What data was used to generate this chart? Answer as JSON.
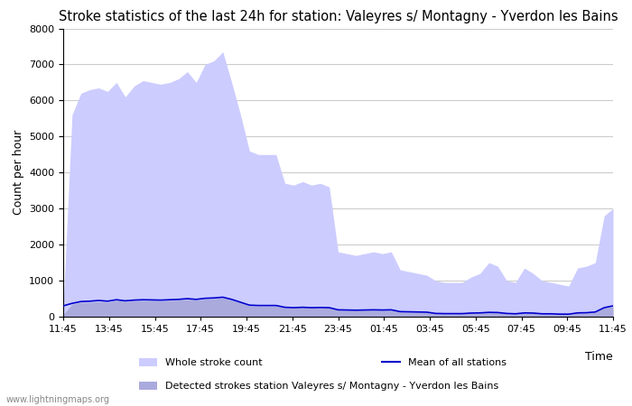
{
  "title": "Stroke statistics of the last 24h for station: Valeyres s/ Montagny - Yverdon les Bains",
  "xlabel": "Time",
  "ylabel": "Count per hour",
  "ylim": [
    0,
    8000
  ],
  "yticks": [
    0,
    1000,
    2000,
    3000,
    4000,
    5000,
    6000,
    7000,
    8000
  ],
  "xtick_labels": [
    "11:45",
    "13:45",
    "15:45",
    "17:45",
    "19:45",
    "21:45",
    "23:45",
    "01:45",
    "03:45",
    "05:45",
    "07:45",
    "09:45",
    "11:45"
  ],
  "watermark": "www.lightningmaps.org",
  "legend": {
    "whole_stroke_label": "Whole stroke count",
    "mean_label": "Mean of all stations",
    "detected_label": "Detected strokes station Valeyres s/ Montagny - Yverdon les Bains"
  },
  "whole_stroke_color": "#ccccff",
  "detected_stroke_color": "#aaaadd",
  "mean_line_color": "#0000cc",
  "background_color": "#ffffff",
  "grid_color": "#cccccc",
  "title_fontsize": 10.5,
  "axis_fontsize": 9,
  "tick_fontsize": 8,
  "whole_stroke_data": [
    300,
    5600,
    6200,
    6300,
    6350,
    6250,
    6500,
    6100,
    6400,
    6550,
    6500,
    6450,
    6500,
    6600,
    6800,
    6500,
    7000,
    7100,
    7350,
    6500,
    5600,
    4600,
    4500,
    4500,
    4500,
    3700,
    3650,
    3750,
    3650,
    3700,
    3600,
    1800,
    1750,
    1700,
    1750,
    1800,
    1750,
    1800,
    1300,
    1250,
    1200,
    1150,
    1000,
    950,
    950,
    950,
    1100,
    1200,
    1500,
    1400,
    1000,
    950,
    1350,
    1200,
    1000,
    950,
    900,
    850,
    1350,
    1400,
    1500,
    2800,
    3000
  ],
  "detected_stroke_data": [
    50,
    350,
    400,
    400,
    420,
    400,
    450,
    420,
    440,
    450,
    445,
    440,
    450,
    460,
    480,
    460,
    490,
    500,
    520,
    460,
    380,
    300,
    290,
    290,
    290,
    250,
    240,
    250,
    240,
    245,
    240,
    180,
    175,
    170,
    175,
    180,
    175,
    180,
    130,
    125,
    120,
    115,
    80,
    75,
    75,
    75,
    90,
    95,
    110,
    105,
    80,
    70,
    95,
    90,
    70,
    70,
    60,
    60,
    95,
    100,
    120,
    240,
    280
  ],
  "mean_line_data": [
    300,
    370,
    420,
    430,
    450,
    430,
    470,
    440,
    460,
    470,
    465,
    460,
    470,
    480,
    500,
    480,
    510,
    520,
    540,
    480,
    400,
    320,
    310,
    310,
    310,
    260,
    250,
    260,
    250,
    255,
    250,
    190,
    185,
    180,
    185,
    190,
    185,
    190,
    140,
    135,
    130,
    125,
    90,
    85,
    85,
    85,
    100,
    105,
    120,
    115,
    90,
    80,
    105,
    100,
    80,
    80,
    70,
    70,
    105,
    110,
    130,
    250,
    300
  ]
}
